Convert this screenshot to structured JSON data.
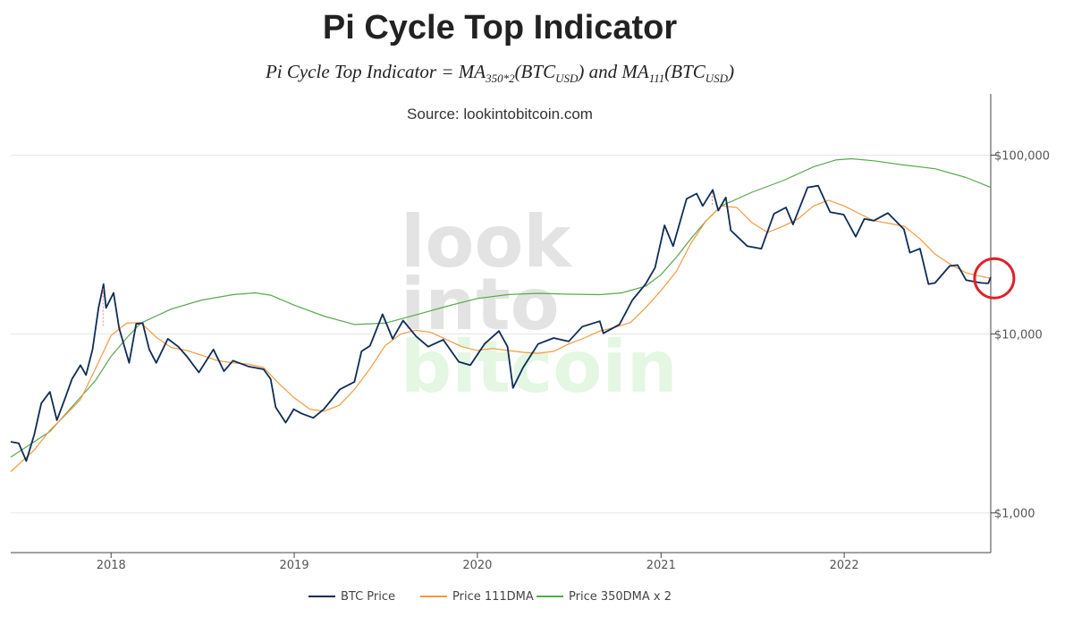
{
  "title": "Pi Cycle Top Indicator",
  "formula": {
    "lhs": "Pi Cycle Top Indicator",
    "eq": "=",
    "ma1": "MA",
    "ma1_sub": "350*2",
    "ma1_arg": "(BTC",
    "arg_sub": "USD",
    "close": ")",
    "and": " and ",
    "ma2": "MA",
    "ma2_sub": "111",
    "ma2_arg": "(BTC"
  },
  "source": "Source: lookintobitcoin.com",
  "watermark": {
    "line1": "look",
    "line2": "into",
    "line3": "bitcoin",
    "color1": "#e3e3e3",
    "color3": "#e3f7e3"
  },
  "colors": {
    "btc": "#0e2c58",
    "ma111": "#f39a3f",
    "ma350x2": "#58a84e",
    "circle": "#e0212b",
    "grid": "#e6e6e6",
    "crossover": "#f08080"
  },
  "chart_data": {
    "type": "line",
    "y_scale": "log",
    "ylim": [
      600,
      220000
    ],
    "xlim": [
      "2017-06-15",
      "2022-10-20"
    ],
    "yticks": [
      {
        "value": 1000,
        "label": "$1,000"
      },
      {
        "value": 10000,
        "label": "$10,000"
      },
      {
        "value": 100000,
        "label": "$100,000"
      }
    ],
    "xticks": [
      {
        "value": "2018-01-01",
        "label": "2018"
      },
      {
        "value": "2019-01-01",
        "label": "2019"
      },
      {
        "value": "2020-01-01",
        "label": "2020"
      },
      {
        "value": "2021-01-01",
        "label": "2021"
      },
      {
        "value": "2022-01-01",
        "label": "2022"
      }
    ],
    "grid": "horizontal",
    "legend_position": "bottom",
    "series": [
      {
        "name": "BTC Price",
        "key": "btc",
        "points": [
          [
            "2017-06-15",
            2500
          ],
          [
            "2017-07-01",
            2450
          ],
          [
            "2017-07-16",
            1950
          ],
          [
            "2017-08-01",
            2750
          ],
          [
            "2017-08-15",
            4100
          ],
          [
            "2017-09-01",
            4750
          ],
          [
            "2017-09-15",
            3300
          ],
          [
            "2017-10-01",
            4350
          ],
          [
            "2017-10-15",
            5600
          ],
          [
            "2017-11-01",
            6700
          ],
          [
            "2017-11-12",
            5900
          ],
          [
            "2017-11-25",
            8200
          ],
          [
            "2017-12-07",
            14000
          ],
          [
            "2017-12-17",
            19000
          ],
          [
            "2017-12-22",
            14000
          ],
          [
            "2018-01-06",
            17000
          ],
          [
            "2018-01-17",
            10800
          ],
          [
            "2018-02-06",
            6900
          ],
          [
            "2018-02-20",
            11400
          ],
          [
            "2018-03-05",
            11500
          ],
          [
            "2018-03-18",
            8200
          ],
          [
            "2018-04-01",
            6900
          ],
          [
            "2018-04-24",
            9400
          ],
          [
            "2018-05-15",
            8500
          ],
          [
            "2018-06-01",
            7500
          ],
          [
            "2018-06-25",
            6100
          ],
          [
            "2018-07-24",
            8200
          ],
          [
            "2018-08-14",
            6200
          ],
          [
            "2018-09-01",
            7100
          ],
          [
            "2018-10-01",
            6600
          ],
          [
            "2018-11-01",
            6350
          ],
          [
            "2018-11-15",
            5600
          ],
          [
            "2018-11-25",
            3900
          ],
          [
            "2018-12-15",
            3200
          ],
          [
            "2018-12-31",
            3800
          ],
          [
            "2019-01-15",
            3600
          ],
          [
            "2019-02-08",
            3400
          ],
          [
            "2019-03-01",
            3800
          ],
          [
            "2019-04-02",
            4900
          ],
          [
            "2019-05-01",
            5400
          ],
          [
            "2019-05-15",
            8000
          ],
          [
            "2019-06-01",
            8600
          ],
          [
            "2019-06-26",
            12900
          ],
          [
            "2019-07-16",
            9400
          ],
          [
            "2019-08-06",
            11900
          ],
          [
            "2019-09-01",
            9700
          ],
          [
            "2019-09-25",
            8500
          ],
          [
            "2019-10-25",
            9300
          ],
          [
            "2019-11-25",
            7000
          ],
          [
            "2019-12-18",
            6700
          ],
          [
            "2020-01-15",
            8800
          ],
          [
            "2020-02-13",
            10400
          ],
          [
            "2020-03-01",
            8500
          ],
          [
            "2020-03-12",
            5000
          ],
          [
            "2020-04-01",
            6500
          ],
          [
            "2020-05-01",
            8800
          ],
          [
            "2020-06-01",
            9500
          ],
          [
            "2020-07-01",
            9100
          ],
          [
            "2020-07-28",
            11000
          ],
          [
            "2020-09-01",
            11800
          ],
          [
            "2020-09-08",
            10100
          ],
          [
            "2020-10-10",
            11300
          ],
          [
            "2020-11-05",
            15500
          ],
          [
            "2020-12-01",
            19000
          ],
          [
            "2020-12-20",
            23500
          ],
          [
            "2021-01-08",
            40500
          ],
          [
            "2021-01-25",
            31000
          ],
          [
            "2021-02-21",
            57000
          ],
          [
            "2021-03-13",
            61000
          ],
          [
            "2021-03-25",
            52000
          ],
          [
            "2021-04-14",
            64000
          ],
          [
            "2021-04-25",
            49000
          ],
          [
            "2021-05-10",
            58000
          ],
          [
            "2021-05-20",
            38000
          ],
          [
            "2021-06-22",
            31000
          ],
          [
            "2021-07-20",
            30000
          ],
          [
            "2021-08-14",
            47000
          ],
          [
            "2021-09-07",
            51000
          ],
          [
            "2021-09-21",
            41000
          ],
          [
            "2021-10-20",
            66000
          ],
          [
            "2021-11-10",
            67500
          ],
          [
            "2021-12-04",
            48000
          ],
          [
            "2021-12-31",
            46500
          ],
          [
            "2022-01-24",
            35000
          ],
          [
            "2022-02-10",
            44000
          ],
          [
            "2022-03-01",
            43000
          ],
          [
            "2022-03-29",
            47500
          ],
          [
            "2022-04-30",
            38500
          ],
          [
            "2022-05-12",
            28500
          ],
          [
            "2022-06-01",
            30000
          ],
          [
            "2022-06-18",
            19000
          ],
          [
            "2022-07-01",
            19300
          ],
          [
            "2022-07-30",
            24000
          ],
          [
            "2022-08-15",
            24300
          ],
          [
            "2022-09-01",
            20000
          ],
          [
            "2022-09-15",
            19700
          ],
          [
            "2022-10-01",
            19300
          ],
          [
            "2022-10-15",
            19200
          ],
          [
            "2022-10-20",
            20800
          ]
        ]
      },
      {
        "name": "Price 111DMA",
        "key": "ma111",
        "points": [
          [
            "2017-06-15",
            1700
          ],
          [
            "2017-08-01",
            2250
          ],
          [
            "2017-09-01",
            2900
          ],
          [
            "2017-10-01",
            3500
          ],
          [
            "2017-11-01",
            4300
          ],
          [
            "2017-12-01",
            6400
          ],
          [
            "2018-01-01",
            9800
          ],
          [
            "2018-02-01",
            11500
          ],
          [
            "2018-03-01",
            11600
          ],
          [
            "2018-04-01",
            9600
          ],
          [
            "2018-05-01",
            8400
          ],
          [
            "2018-06-01",
            8100
          ],
          [
            "2018-07-01",
            7600
          ],
          [
            "2018-08-01",
            7100
          ],
          [
            "2018-09-01",
            6900
          ],
          [
            "2018-10-01",
            6800
          ],
          [
            "2018-11-01",
            6500
          ],
          [
            "2018-12-01",
            5300
          ],
          [
            "2019-01-01",
            4400
          ],
          [
            "2019-02-01",
            3800
          ],
          [
            "2019-03-01",
            3700
          ],
          [
            "2019-04-01",
            4000
          ],
          [
            "2019-05-01",
            4900
          ],
          [
            "2019-06-01",
            6400
          ],
          [
            "2019-07-01",
            8600
          ],
          [
            "2019-08-01",
            10000
          ],
          [
            "2019-09-01",
            10500
          ],
          [
            "2019-10-01",
            10200
          ],
          [
            "2019-11-01",
            9300
          ],
          [
            "2019-12-01",
            8500
          ],
          [
            "2020-01-01",
            8100
          ],
          [
            "2020-02-01",
            8300
          ],
          [
            "2020-03-01",
            8100
          ],
          [
            "2020-04-01",
            7900
          ],
          [
            "2020-05-01",
            7800
          ],
          [
            "2020-06-01",
            8000
          ],
          [
            "2020-07-01",
            8800
          ],
          [
            "2020-08-01",
            9500
          ],
          [
            "2020-09-01",
            10400
          ],
          [
            "2020-10-01",
            10900
          ],
          [
            "2020-11-01",
            11600
          ],
          [
            "2020-12-01",
            14000
          ],
          [
            "2021-01-01",
            17500
          ],
          [
            "2021-02-01",
            22500
          ],
          [
            "2021-03-01",
            32000
          ],
          [
            "2021-04-01",
            43000
          ],
          [
            "2021-05-01",
            52000
          ],
          [
            "2021-06-01",
            51000
          ],
          [
            "2021-07-01",
            42000
          ],
          [
            "2021-08-01",
            37000
          ],
          [
            "2021-09-01",
            40000
          ],
          [
            "2021-10-01",
            44000
          ],
          [
            "2021-11-01",
            52000
          ],
          [
            "2021-12-01",
            56000
          ],
          [
            "2022-01-01",
            52000
          ],
          [
            "2022-02-01",
            47000
          ],
          [
            "2022-03-01",
            43000
          ],
          [
            "2022-04-01",
            41500
          ],
          [
            "2022-05-01",
            40000
          ],
          [
            "2022-06-01",
            34000
          ],
          [
            "2022-07-01",
            28000
          ],
          [
            "2022-08-01",
            24500
          ],
          [
            "2022-09-01",
            22000
          ],
          [
            "2022-10-01",
            21000
          ],
          [
            "2022-10-20",
            20500
          ]
        ]
      },
      {
        "name": "Price 350DMA x 2",
        "key": "ma350x2",
        "points": [
          [
            "2017-06-15",
            2050
          ],
          [
            "2017-09-01",
            2850
          ],
          [
            "2017-12-01",
            5500
          ],
          [
            "2018-01-01",
            7500
          ],
          [
            "2018-02-01",
            9500
          ],
          [
            "2018-03-01",
            11500
          ],
          [
            "2018-05-01",
            13800
          ],
          [
            "2018-07-01",
            15500
          ],
          [
            "2018-09-01",
            16600
          ],
          [
            "2018-10-15",
            17000
          ],
          [
            "2018-11-15",
            16500
          ],
          [
            "2019-01-01",
            14500
          ],
          [
            "2019-03-01",
            12600
          ],
          [
            "2019-05-01",
            11300
          ],
          [
            "2019-07-01",
            11500
          ],
          [
            "2019-09-01",
            12800
          ],
          [
            "2019-11-01",
            14300
          ],
          [
            "2020-01-01",
            15800
          ],
          [
            "2020-03-01",
            16600
          ],
          [
            "2020-05-01",
            16900
          ],
          [
            "2020-07-01",
            16700
          ],
          [
            "2020-09-01",
            16600
          ],
          [
            "2020-10-15",
            17000
          ],
          [
            "2020-12-01",
            18500
          ],
          [
            "2021-01-01",
            21500
          ],
          [
            "2021-02-01",
            27000
          ],
          [
            "2021-03-01",
            34000
          ],
          [
            "2021-04-01",
            43000
          ],
          [
            "2021-05-01",
            52000
          ],
          [
            "2021-07-01",
            62000
          ],
          [
            "2021-09-01",
            72000
          ],
          [
            "2021-11-01",
            86000
          ],
          [
            "2021-12-15",
            94000
          ],
          [
            "2022-01-15",
            95500
          ],
          [
            "2022-03-01",
            93000
          ],
          [
            "2022-05-01",
            88000
          ],
          [
            "2022-07-01",
            84000
          ],
          [
            "2022-09-01",
            75000
          ],
          [
            "2022-10-20",
            66000
          ]
        ]
      }
    ],
    "crossovers": [
      {
        "date": "2017-12-16",
        "low": 11000,
        "high": 18000
      },
      {
        "date": "2021-04-13",
        "low": 52000,
        "high": 62000
      }
    ],
    "highlight_circle": {
      "date": "2022-10-27",
      "value": 20500
    }
  },
  "legend": [
    {
      "label": "BTC Price",
      "key": "btc"
    },
    {
      "label": "Price 111DMA",
      "key": "ma111"
    },
    {
      "label": "Price 350DMA x 2",
      "key": "ma350x2"
    }
  ]
}
